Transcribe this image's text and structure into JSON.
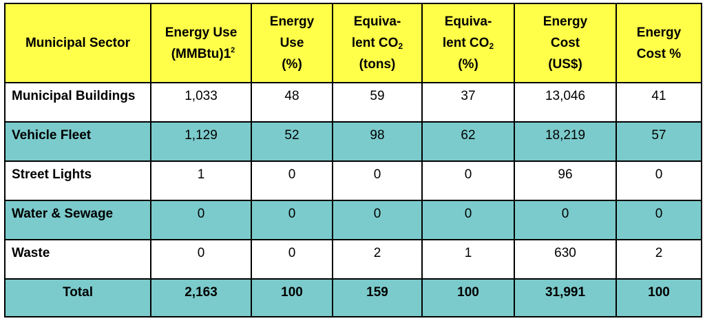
{
  "table": {
    "headers": [
      {
        "lines": [
          "Municipal Sector"
        ]
      },
      {
        "lines": [
          "Energy Use",
          "(MMBtu)"
        ],
        "footnote": "2",
        "suffix": "1"
      },
      {
        "lines": [
          "Energy",
          "Use",
          "(%)"
        ]
      },
      {
        "lines": [
          "Equiva-",
          "lent CO",
          "(tons)"
        ],
        "sub": "2"
      },
      {
        "lines": [
          "Equiva-",
          "lent CO",
          "(%)"
        ],
        "sub": "2"
      },
      {
        "lines": [
          "Energy",
          "Cost",
          "(US$)"
        ]
      },
      {
        "lines": [
          "Energy",
          "Cost %"
        ]
      }
    ],
    "rows": [
      {
        "sector": "Municipal Buildings",
        "energy_use": "1,033",
        "energy_pct": "48",
        "co2_tons": "59",
        "co2_pct": "37",
        "cost": "13,046",
        "cost_pct": "41"
      },
      {
        "sector": "Vehicle Fleet",
        "energy_use": "1,129",
        "energy_pct": "52",
        "co2_tons": "98",
        "co2_pct": "62",
        "cost": "18,219",
        "cost_pct": "57"
      },
      {
        "sector": "Street Lights",
        "energy_use": "1",
        "energy_pct": "0",
        "co2_tons": "0",
        "co2_pct": "0",
        "cost": "96",
        "cost_pct": "0"
      },
      {
        "sector": "Water & Sewage",
        "energy_use": "0",
        "energy_pct": "0",
        "co2_tons": "0",
        "co2_pct": "0",
        "cost": "0",
        "cost_pct": "0"
      },
      {
        "sector": "Waste",
        "energy_use": "0",
        "energy_pct": "0",
        "co2_tons": "2",
        "co2_pct": "1",
        "cost": "630",
        "cost_pct": "2"
      }
    ],
    "total": {
      "sector": "Total",
      "energy_use": "2,163",
      "energy_pct": "100",
      "co2_tons": "159",
      "co2_pct": "100",
      "cost": "31,991",
      "cost_pct": "100"
    }
  },
  "colors": {
    "header_bg": "#ffff4a",
    "teal_row_bg": "#7ccbcc",
    "white_row_bg": "#ffffff",
    "border": "#000000"
  }
}
